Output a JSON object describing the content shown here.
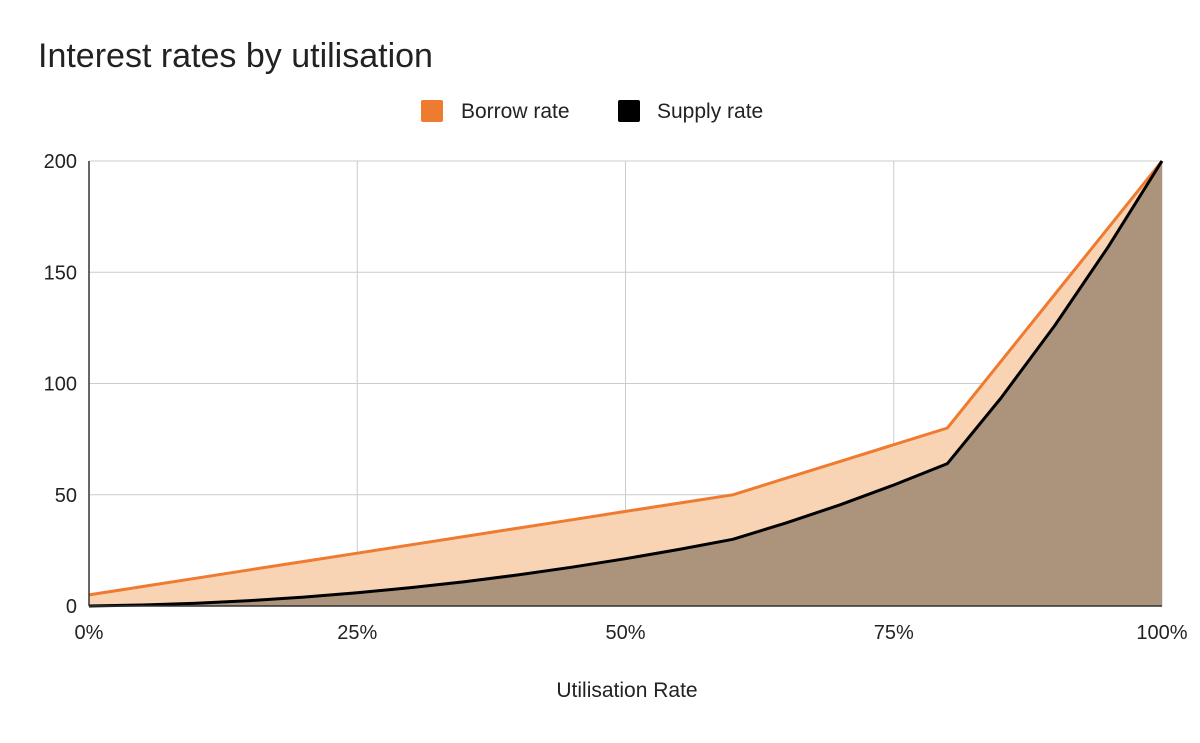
{
  "chart_data": {
    "type": "area",
    "title": "Interest rates by utilisation",
    "xlabel": "Utilisation Rate",
    "ylabel": "",
    "xlim": [
      0,
      100
    ],
    "ylim": [
      0,
      200
    ],
    "x_ticks": [
      0,
      25,
      50,
      75,
      100
    ],
    "x_tick_labels": [
      "0%",
      "25%",
      "50%",
      "75%",
      "100%"
    ],
    "y_ticks": [
      0,
      50,
      100,
      150,
      200
    ],
    "y_tick_labels": [
      "0",
      "50",
      "100",
      "150",
      "200"
    ],
    "grid": true,
    "legend_position": "top-center",
    "x": [
      0,
      5,
      10,
      15,
      20,
      25,
      30,
      35,
      40,
      45,
      50,
      55,
      60,
      65,
      70,
      75,
      80,
      85,
      90,
      95,
      100
    ],
    "series": [
      {
        "name": "Borrow rate",
        "color": "#ee7b30",
        "fill": "#f8d4b4",
        "values": [
          5,
          8.75,
          12.5,
          16.25,
          20,
          23.75,
          27.5,
          31.25,
          35,
          38.75,
          42.5,
          46.25,
          50,
          57.5,
          65,
          72.5,
          80,
          110,
          140,
          170,
          200
        ]
      },
      {
        "name": "Supply rate",
        "color": "#000000",
        "fill": "#ab937c",
        "values": [
          0,
          0.44,
          1.25,
          2.44,
          4,
          5.94,
          8.25,
          10.94,
          14,
          17.44,
          21.25,
          25.44,
          30,
          37.38,
          45.5,
          54.38,
          64,
          93.5,
          126,
          161.5,
          200
        ]
      }
    ]
  }
}
